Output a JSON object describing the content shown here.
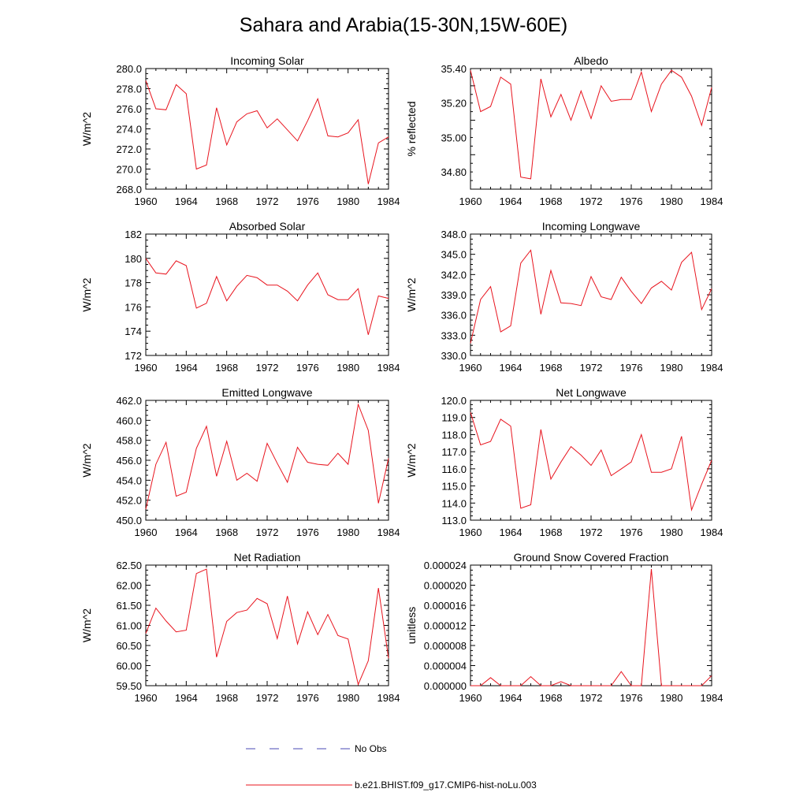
{
  "figure": {
    "title": "Sahara and Arabia(15-30N,15W-60E)"
  },
  "legend": {
    "placement": "bottom-center",
    "items": [
      {
        "label": "No Obs",
        "color": "#4a4ab4",
        "style": "dashed"
      },
      {
        "label": "b.e21.BHIST.f09_g17.CMIP6-hist-noLu.003",
        "color": "#e8141e",
        "style": "solid"
      }
    ]
  },
  "chart_data": [
    {
      "type": "line",
      "title": "Incoming Solar",
      "ylabel": "W/m^2",
      "xlim": [
        1960,
        1984
      ],
      "ylim": [
        268.0,
        280.0
      ],
      "xticks": [
        1960,
        1964,
        1968,
        1972,
        1976,
        1980,
        1984
      ],
      "xtick_labels": [
        "1960",
        "1964",
        "1968",
        "1972",
        "1976",
        "1980",
        "1984"
      ],
      "yticks": [
        268.0,
        270.0,
        272.0,
        274.0,
        276.0,
        278.0,
        280.0
      ],
      "ytick_labels": [
        "268.0",
        "270.0",
        "272.0",
        "274.0",
        "276.0",
        "278.0",
        "280.0"
      ],
      "x": [
        1960,
        1961,
        1962,
        1963,
        1964,
        1965,
        1966,
        1967,
        1968,
        1969,
        1970,
        1971,
        1972,
        1973,
        1974,
        1975,
        1976,
        1977,
        1978,
        1979,
        1980,
        1981,
        1982,
        1983,
        1984
      ],
      "series": [
        {
          "values": [
            278.8,
            276.0,
            275.9,
            278.4,
            277.5,
            270.0,
            270.4,
            276.1,
            272.4,
            274.7,
            275.5,
            275.8,
            274.1,
            275.0,
            273.9,
            272.8,
            274.8,
            277.0,
            273.3,
            273.2,
            273.6,
            274.9,
            268.5,
            272.6,
            273.2
          ],
          "color": "#e8141e"
        }
      ]
    },
    {
      "type": "line",
      "title": "Albedo",
      "ylabel": "% reflected",
      "xlim": [
        1960,
        1984
      ],
      "ylim": [
        34.7,
        35.4
      ],
      "xticks": [
        1960,
        1964,
        1968,
        1972,
        1976,
        1980,
        1984
      ],
      "xtick_labels": [
        "1960",
        "1964",
        "1968",
        "1972",
        "1976",
        "1980",
        "1984"
      ],
      "yticks": [
        34.8,
        35.0,
        35.2,
        35.4
      ],
      "ytick_labels": [
        "34.80",
        "35.00",
        "35.20",
        "35.40"
      ],
      "x": [
        1960,
        1961,
        1962,
        1963,
        1964,
        1965,
        1966,
        1967,
        1968,
        1969,
        1970,
        1971,
        1972,
        1973,
        1974,
        1975,
        1976,
        1977,
        1978,
        1979,
        1980,
        1981,
        1982,
        1983,
        1984
      ],
      "series": [
        {
          "values": [
            35.39,
            35.15,
            35.18,
            35.35,
            35.31,
            34.77,
            34.76,
            35.34,
            35.12,
            35.25,
            35.1,
            35.27,
            35.11,
            35.3,
            35.21,
            35.22,
            35.22,
            35.38,
            35.15,
            35.31,
            35.39,
            35.35,
            35.24,
            35.07,
            35.29
          ],
          "color": "#e8141e"
        }
      ]
    },
    {
      "type": "line",
      "title": "Absorbed Solar",
      "ylabel": "W/m^2",
      "xlim": [
        1960,
        1984
      ],
      "ylim": [
        172,
        182
      ],
      "xticks": [
        1960,
        1964,
        1968,
        1972,
        1976,
        1980,
        1984
      ],
      "xtick_labels": [
        "1960",
        "1964",
        "1968",
        "1972",
        "1976",
        "1980",
        "1984"
      ],
      "yticks": [
        172,
        174,
        176,
        178,
        180,
        182
      ],
      "ytick_labels": [
        "172",
        "174",
        "176",
        "178",
        "180",
        "182"
      ],
      "x": [
        1960,
        1961,
        1962,
        1963,
        1964,
        1965,
        1966,
        1967,
        1968,
        1969,
        1970,
        1971,
        1972,
        1973,
        1974,
        1975,
        1976,
        1977,
        1978,
        1979,
        1980,
        1981,
        1982,
        1983,
        1984
      ],
      "series": [
        {
          "values": [
            180.0,
            178.8,
            178.7,
            179.8,
            179.4,
            175.9,
            176.3,
            178.5,
            176.5,
            177.7,
            178.6,
            178.4,
            177.8,
            177.8,
            177.3,
            176.5,
            177.8,
            178.8,
            177.0,
            176.6,
            176.6,
            177.5,
            173.7,
            176.9,
            176.7
          ],
          "color": "#e8141e"
        }
      ]
    },
    {
      "type": "line",
      "title": "Incoming Longwave",
      "ylabel": "W/m^2",
      "xlim": [
        1960,
        1984
      ],
      "ylim": [
        330.0,
        348.0
      ],
      "xticks": [
        1960,
        1964,
        1968,
        1972,
        1976,
        1980,
        1984
      ],
      "xtick_labels": [
        "1960",
        "1964",
        "1968",
        "1972",
        "1976",
        "1980",
        "1984"
      ],
      "yticks": [
        330.0,
        333.0,
        336.0,
        339.0,
        342.0,
        345.0,
        348.0
      ],
      "ytick_labels": [
        "330.0",
        "333.0",
        "336.0",
        "339.0",
        "342.0",
        "345.0",
        "348.0"
      ],
      "x": [
        1960,
        1961,
        1962,
        1963,
        1964,
        1965,
        1966,
        1967,
        1968,
        1969,
        1970,
        1971,
        1972,
        1973,
        1974,
        1975,
        1976,
        1977,
        1978,
        1979,
        1980,
        1981,
        1982,
        1983,
        1984
      ],
      "series": [
        {
          "values": [
            331.8,
            338.3,
            340.2,
            333.5,
            334.4,
            343.7,
            345.6,
            336.1,
            342.6,
            337.8,
            337.7,
            337.4,
            341.7,
            338.7,
            338.3,
            341.6,
            339.5,
            337.7,
            340.0,
            341.0,
            339.7,
            343.8,
            345.3,
            336.8,
            339.9
          ],
          "color": "#e8141e"
        }
      ]
    },
    {
      "type": "line",
      "title": "Emitted Longwave",
      "ylabel": "W/m^2",
      "xlim": [
        1960,
        1984
      ],
      "ylim": [
        450.0,
        462.0
      ],
      "xticks": [
        1960,
        1964,
        1968,
        1972,
        1976,
        1980,
        1984
      ],
      "xtick_labels": [
        "1960",
        "1964",
        "1968",
        "1972",
        "1976",
        "1980",
        "1984"
      ],
      "yticks": [
        450.0,
        452.0,
        454.0,
        456.0,
        458.0,
        460.0,
        462.0
      ],
      "ytick_labels": [
        "450.0",
        "452.0",
        "454.0",
        "456.0",
        "458.0",
        "460.0",
        "462.0"
      ],
      "x": [
        1960,
        1961,
        1962,
        1963,
        1964,
        1965,
        1966,
        1967,
        1968,
        1969,
        1970,
        1971,
        1972,
        1973,
        1974,
        1975,
        1976,
        1977,
        1978,
        1979,
        1980,
        1981,
        1982,
        1983,
        1984
      ],
      "series": [
        {
          "values": [
            451.1,
            455.6,
            457.8,
            452.4,
            452.8,
            457.2,
            459.4,
            454.4,
            457.9,
            454.0,
            454.7,
            453.9,
            457.7,
            455.7,
            453.8,
            457.3,
            455.8,
            455.6,
            455.5,
            456.7,
            455.6,
            461.6,
            459.0,
            451.7,
            456.2
          ],
          "color": "#e8141e"
        }
      ]
    },
    {
      "type": "line",
      "title": "Net Longwave",
      "ylabel": "W/m^2",
      "xlim": [
        1960,
        1984
      ],
      "ylim": [
        113.0,
        120.0
      ],
      "xticks": [
        1960,
        1964,
        1968,
        1972,
        1976,
        1980,
        1984
      ],
      "xtick_labels": [
        "1960",
        "1964",
        "1968",
        "1972",
        "1976",
        "1980",
        "1984"
      ],
      "yticks": [
        113.0,
        114.0,
        115.0,
        116.0,
        117.0,
        118.0,
        119.0,
        120.0
      ],
      "ytick_labels": [
        "113.0",
        "114.0",
        "115.0",
        "116.0",
        "117.0",
        "118.0",
        "119.0",
        "120.0"
      ],
      "x": [
        1960,
        1961,
        1962,
        1963,
        1964,
        1965,
        1966,
        1967,
        1968,
        1969,
        1970,
        1971,
        1972,
        1973,
        1974,
        1975,
        1976,
        1977,
        1978,
        1979,
        1980,
        1981,
        1982,
        1983,
        1984
      ],
      "series": [
        {
          "values": [
            119.3,
            117.4,
            117.6,
            118.9,
            118.5,
            113.7,
            113.9,
            118.3,
            115.4,
            116.4,
            117.3,
            116.8,
            116.2,
            117.1,
            115.6,
            116.0,
            116.4,
            118.0,
            115.8,
            115.8,
            116.0,
            117.9,
            113.6,
            115.1,
            116.5
          ],
          "color": "#e8141e"
        }
      ]
    },
    {
      "type": "line",
      "title": "Net Radiation",
      "ylabel": "W/m^2",
      "xlim": [
        1960,
        1984
      ],
      "ylim": [
        59.5,
        62.5
      ],
      "xticks": [
        1960,
        1964,
        1968,
        1972,
        1976,
        1980,
        1984
      ],
      "xtick_labels": [
        "1960",
        "1964",
        "1968",
        "1972",
        "1976",
        "1980",
        "1984"
      ],
      "yticks": [
        59.5,
        60.0,
        60.5,
        61.0,
        61.5,
        62.0,
        62.5
      ],
      "ytick_labels": [
        "59.50",
        "60.00",
        "60.50",
        "61.00",
        "61.50",
        "62.00",
        "62.50"
      ],
      "x": [
        1960,
        1961,
        1962,
        1963,
        1964,
        1965,
        1966,
        1967,
        1968,
        1969,
        1970,
        1971,
        1972,
        1973,
        1974,
        1975,
        1976,
        1977,
        1978,
        1979,
        1980,
        1981,
        1982,
        1983,
        1984
      ],
      "series": [
        {
          "values": [
            60.8,
            61.43,
            61.11,
            60.84,
            60.88,
            62.29,
            62.4,
            60.21,
            61.1,
            61.32,
            61.38,
            61.67,
            61.54,
            60.67,
            61.73,
            60.54,
            61.34,
            60.77,
            61.27,
            60.75,
            60.66,
            59.53,
            60.12,
            61.93,
            60.18
          ],
          "color": "#e8141e"
        }
      ]
    },
    {
      "type": "line",
      "title": "Ground Snow Covered Fraction",
      "ylabel": "unitless",
      "xlim": [
        1960,
        1984
      ],
      "ylim": [
        0.0,
        2.4e-05
      ],
      "xticks": [
        1960,
        1964,
        1968,
        1972,
        1976,
        1980,
        1984
      ],
      "xtick_labels": [
        "1960",
        "1964",
        "1968",
        "1972",
        "1976",
        "1980",
        "1984"
      ],
      "yticks": [
        0.0,
        4e-06,
        8e-06,
        1.2e-05,
        1.6e-05,
        2e-05,
        2.4e-05
      ],
      "ytick_labels": [
        "0.000000",
        "0.000004",
        "0.000008",
        "0.000012",
        "0.000016",
        "0.000020",
        "0.000024"
      ],
      "x": [
        1960,
        1961,
        1962,
        1963,
        1964,
        1965,
        1966,
        1967,
        1968,
        1969,
        1970,
        1971,
        1972,
        1973,
        1974,
        1975,
        1976,
        1977,
        1978,
        1979,
        1980,
        1981,
        1982,
        1983,
        1984
      ],
      "series": [
        {
          "values": [
            0.0,
            0.0,
            1.6e-06,
            0.0,
            0.0,
            0.0,
            1.8e-06,
            0.0,
            0.0,
            8e-07,
            0.0,
            0.0,
            0.0,
            0.0,
            0.0,
            2.8e-06,
            0.0,
            0.0,
            2.32e-05,
            0.0,
            0.0,
            0.0,
            0.0,
            0.0,
            2e-06
          ],
          "color": "#e8141e"
        }
      ]
    }
  ]
}
